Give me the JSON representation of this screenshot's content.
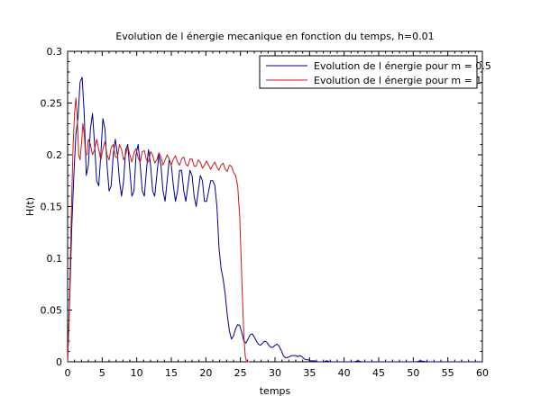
{
  "chart_data": {
    "type": "line",
    "title": "Evolution de l énergie mecanique en fonction du temps, h=0.01",
    "xlabel": "temps",
    "ylabel": "H(t)",
    "xlim": [
      0,
      60
    ],
    "ylim": [
      0,
      0.3
    ],
    "xticks": [
      "0",
      "5",
      "10",
      "15",
      "20",
      "25",
      "30",
      "35",
      "40",
      "45",
      "50",
      "55",
      "60"
    ],
    "yticks": [
      "0",
      "0.05",
      "0.1",
      "0.15",
      "0.2",
      "0.25",
      "0.3"
    ],
    "grid": false,
    "legend_position": "top-right",
    "series": [
      {
        "name": "Evolution de l énergie pour m = 0.5",
        "color": "#00008b",
        "x": [
          0,
          0.3,
          0.6,
          0.9,
          1.2,
          1.5,
          1.8,
          2.1,
          2.4,
          2.7,
          3.0,
          3.3,
          3.6,
          3.9,
          4.2,
          4.5,
          4.8,
          5.1,
          5.4,
          5.7,
          6.0,
          6.3,
          6.6,
          6.9,
          7.2,
          7.5,
          7.8,
          8.1,
          8.4,
          8.7,
          9.0,
          9.3,
          9.6,
          9.9,
          10.2,
          10.5,
          10.8,
          11.1,
          11.4,
          11.7,
          12.0,
          12.3,
          12.6,
          12.9,
          13.2,
          13.5,
          13.8,
          14.1,
          14.4,
          14.7,
          15.0,
          15.3,
          15.6,
          15.9,
          16.2,
          16.5,
          16.8,
          17.1,
          17.4,
          17.7,
          18.0,
          18.3,
          18.6,
          18.9,
          19.2,
          19.5,
          19.8,
          20.1,
          20.4,
          20.7,
          21.0,
          21.3,
          21.6,
          21.9,
          22.2,
          22.5,
          22.8,
          23.1,
          23.4,
          23.7,
          24.0,
          24.3,
          24.6,
          24.9,
          25.2,
          25.5,
          25.8,
          26.1,
          26.4,
          26.7,
          27.0,
          27.3,
          27.6,
          27.9,
          28.2,
          28.5,
          28.8,
          29.1,
          29.4,
          29.7,
          30.0,
          30.3,
          30.6,
          30.9,
          31.2,
          31.5,
          31.8,
          32.1,
          32.4,
          32.7,
          33.0,
          33.3,
          33.6,
          33.9,
          34.2,
          34.5,
          34.8,
          35.1,
          35.4,
          35.7,
          36.0,
          36.5,
          37.0,
          37.5,
          38.0,
          39.0,
          40.0,
          41.0,
          41.5,
          42.0,
          42.5,
          43.0,
          45.0,
          48.0,
          50.0,
          50.5,
          51.0,
          52.0,
          55.0,
          60.0
        ],
        "y": [
          0.0,
          0.06,
          0.13,
          0.18,
          0.22,
          0.235,
          0.27,
          0.275,
          0.24,
          0.18,
          0.19,
          0.225,
          0.24,
          0.21,
          0.175,
          0.17,
          0.2,
          0.235,
          0.225,
          0.19,
          0.165,
          0.17,
          0.2,
          0.215,
          0.2,
          0.175,
          0.16,
          0.175,
          0.205,
          0.21,
          0.185,
          0.16,
          0.165,
          0.2,
          0.21,
          0.19,
          0.165,
          0.16,
          0.185,
          0.205,
          0.19,
          0.165,
          0.16,
          0.18,
          0.2,
          0.19,
          0.165,
          0.155,
          0.175,
          0.195,
          0.19,
          0.17,
          0.155,
          0.165,
          0.185,
          0.185,
          0.165,
          0.155,
          0.17,
          0.185,
          0.18,
          0.16,
          0.15,
          0.165,
          0.18,
          0.175,
          0.155,
          0.155,
          0.165,
          0.175,
          0.175,
          0.17,
          0.15,
          0.11,
          0.09,
          0.08,
          0.065,
          0.045,
          0.03,
          0.022,
          0.025,
          0.032,
          0.036,
          0.035,
          0.028,
          0.02,
          0.018,
          0.022,
          0.026,
          0.027,
          0.024,
          0.02,
          0.017,
          0.016,
          0.018,
          0.02,
          0.019,
          0.016,
          0.014,
          0.014,
          0.016,
          0.017,
          0.015,
          0.011,
          0.006,
          0.004,
          0.004,
          0.005,
          0.006,
          0.006,
          0.006,
          0.005,
          0.006,
          0.005,
          0.003,
          0.002,
          0.002,
          0.001,
          0.001,
          0.001,
          0.0,
          0.0,
          0.0,
          0.001,
          0.0,
          0.0,
          0.0,
          0.0,
          0.0,
          0.001,
          0.0,
          0.0,
          0.0,
          0.0,
          0.0,
          0.0,
          0.001,
          0.0,
          0.0,
          0.0
        ]
      },
      {
        "name": "Evolution de l énergie pour m = 1",
        "color": "#c81a1a",
        "x": [
          0,
          0.2,
          0.4,
          0.6,
          0.8,
          1.0,
          1.2,
          1.4,
          1.6,
          1.8,
          2.0,
          2.2,
          2.4,
          2.6,
          2.8,
          3.0,
          3.3,
          3.6,
          3.9,
          4.2,
          4.5,
          4.8,
          5.1,
          5.4,
          5.7,
          6.0,
          6.3,
          6.6,
          6.9,
          7.2,
          7.5,
          7.8,
          8.1,
          8.4,
          8.7,
          9.0,
          9.3,
          9.6,
          9.9,
          10.2,
          10.5,
          10.8,
          11.1,
          11.4,
          11.7,
          12.0,
          12.3,
          12.6,
          12.9,
          13.2,
          13.5,
          13.8,
          14.1,
          14.4,
          14.7,
          15.0,
          15.3,
          15.6,
          15.9,
          16.2,
          16.5,
          16.8,
          17.1,
          17.4,
          17.7,
          18.0,
          18.3,
          18.6,
          18.9,
          19.2,
          19.5,
          19.8,
          20.1,
          20.4,
          20.7,
          21.0,
          21.3,
          21.6,
          21.9,
          22.2,
          22.5,
          22.8,
          23.1,
          23.4,
          23.7,
          24.0,
          24.3,
          24.6,
          24.9,
          25.1,
          25.3,
          25.5,
          25.7,
          25.9,
          26.1,
          26.3
        ],
        "y": [
          0.0,
          0.04,
          0.1,
          0.16,
          0.21,
          0.24,
          0.255,
          0.235,
          0.2,
          0.195,
          0.21,
          0.23,
          0.22,
          0.2,
          0.2,
          0.215,
          0.21,
          0.2,
          0.205,
          0.215,
          0.205,
          0.195,
          0.205,
          0.213,
          0.2,
          0.195,
          0.207,
          0.21,
          0.198,
          0.197,
          0.21,
          0.205,
          0.195,
          0.2,
          0.208,
          0.2,
          0.193,
          0.202,
          0.206,
          0.197,
          0.193,
          0.203,
          0.204,
          0.195,
          0.193,
          0.203,
          0.2,
          0.192,
          0.195,
          0.202,
          0.198,
          0.19,
          0.195,
          0.2,
          0.196,
          0.19,
          0.196,
          0.199,
          0.193,
          0.19,
          0.196,
          0.198,
          0.191,
          0.189,
          0.196,
          0.196,
          0.189,
          0.189,
          0.195,
          0.193,
          0.187,
          0.19,
          0.194,
          0.19,
          0.186,
          0.19,
          0.193,
          0.188,
          0.185,
          0.19,
          0.192,
          0.186,
          0.184,
          0.19,
          0.189,
          0.183,
          0.18,
          0.17,
          0.14,
          0.1,
          0.06,
          0.025,
          0.005,
          0.0,
          0.0,
          0.0
        ]
      }
    ]
  }
}
